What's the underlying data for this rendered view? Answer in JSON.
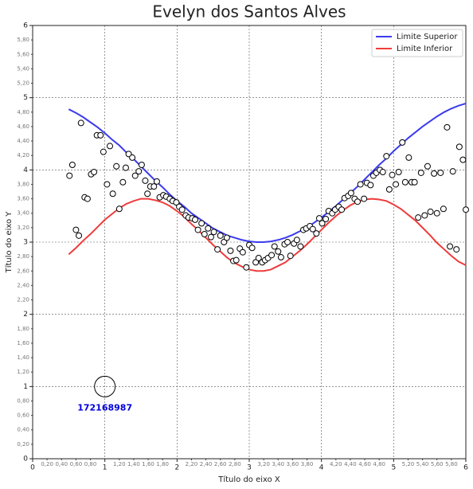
{
  "chart_data": {
    "type": "line",
    "title": "Evelyn dos Santos Alves",
    "x_label": "Título do eixo X",
    "y_label": "Título do eixo Y",
    "xlim": [
      0,
      6
    ],
    "ylim": [
      0,
      6
    ],
    "xticks": [
      0,
      1,
      2,
      3,
      4,
      5,
      6
    ],
    "yticks": [
      0,
      1,
      2,
      3,
      4,
      5,
      6
    ],
    "xticks_minor": [
      {
        "value": 0.2,
        "label": "0,20"
      },
      {
        "value": 0.4,
        "label": "0,40"
      },
      {
        "value": 0.6,
        "label": "0,60"
      },
      {
        "value": 0.8,
        "label": "0,80"
      },
      {
        "value": 1.2,
        "label": "1,20"
      },
      {
        "value": 1.4,
        "label": "1,40"
      },
      {
        "value": 1.6,
        "label": "1,60"
      },
      {
        "value": 1.8,
        "label": "1,80"
      },
      {
        "value": 2.2,
        "label": "2,20"
      },
      {
        "value": 2.4,
        "label": "2,40"
      },
      {
        "value": 2.6,
        "label": "2,60"
      },
      {
        "value": 2.8,
        "label": "2,80"
      },
      {
        "value": 3.2,
        "label": "3,20"
      },
      {
        "value": 3.4,
        "label": "3,40"
      },
      {
        "value": 3.6,
        "label": "3,60"
      },
      {
        "value": 3.8,
        "label": "3,80"
      },
      {
        "value": 4.2,
        "label": "4,20"
      },
      {
        "value": 4.4,
        "label": "4,40"
      },
      {
        "value": 4.6,
        "label": "4,60"
      },
      {
        "value": 4.8,
        "label": "4,80"
      },
      {
        "value": 5.2,
        "label": "5,20"
      },
      {
        "value": 5.4,
        "label": "5,40"
      },
      {
        "value": 5.6,
        "label": "5,60"
      },
      {
        "value": 5.8,
        "label": "5,80"
      }
    ],
    "yticks_minor": [
      {
        "value": 0.2,
        "label": "0,20"
      },
      {
        "value": 0.4,
        "label": "0,40"
      },
      {
        "value": 0.6,
        "label": "0,60"
      },
      {
        "value": 0.8,
        "label": "0,80"
      },
      {
        "value": 1.2,
        "label": "1,20"
      },
      {
        "value": 1.4,
        "label": "1,40"
      },
      {
        "value": 1.6,
        "label": "1,60"
      },
      {
        "value": 1.8,
        "label": "1,80"
      },
      {
        "value": 2.2,
        "label": "2,20"
      },
      {
        "value": 2.4,
        "label": "2,40"
      },
      {
        "value": 2.6,
        "label": "2,60"
      },
      {
        "value": 2.8,
        "label": "2,80"
      },
      {
        "value": 3.2,
        "label": "3,20"
      },
      {
        "value": 3.4,
        "label": "3,40"
      },
      {
        "value": 3.6,
        "label": "3,60"
      },
      {
        "value": 3.8,
        "label": "3,80"
      },
      {
        "value": 4.2,
        "label": "4,20"
      },
      {
        "value": 4.4,
        "label": "4,40"
      },
      {
        "value": 4.6,
        "label": "4,60"
      },
      {
        "value": 4.8,
        "label": "4,80"
      },
      {
        "value": 5.2,
        "label": "5,20"
      },
      {
        "value": 5.4,
        "label": "5,40"
      },
      {
        "value": 5.6,
        "label": "5,60"
      },
      {
        "value": 5.8,
        "label": "5,80"
      }
    ],
    "grid": true,
    "legend": "upper right",
    "x": [
      0.5,
      0.6,
      0.7,
      0.8,
      0.9,
      1.0,
      1.1,
      1.2,
      1.3,
      1.4,
      1.5,
      1.6,
      1.7,
      1.8,
      1.9,
      2.0,
      2.1,
      2.2,
      2.3,
      2.4,
      2.5,
      2.6,
      2.7,
      2.8,
      2.9,
      3.0,
      3.1,
      3.2,
      3.3,
      3.4,
      3.5,
      3.6,
      3.7,
      3.8,
      3.9,
      4.0,
      4.1,
      4.2,
      4.3,
      4.4,
      4.5,
      4.6,
      4.7,
      4.8,
      4.9,
      5.0,
      5.1,
      5.2,
      5.3,
      5.4,
      5.5,
      5.6,
      5.7,
      5.8,
      5.9,
      6.0
    ],
    "series": [
      {
        "name": "Limite Superior",
        "color": "#3b3bf0",
        "values": [
          4.84,
          4.79,
          4.73,
          4.66,
          4.59,
          4.51,
          4.42,
          4.34,
          4.24,
          4.15,
          4.05,
          3.95,
          3.85,
          3.76,
          3.66,
          3.57,
          3.49,
          3.4,
          3.33,
          3.26,
          3.19,
          3.14,
          3.09,
          3.06,
          3.03,
          3.01,
          3.0,
          3.0,
          3.01,
          3.03,
          3.06,
          3.1,
          3.15,
          3.2,
          3.27,
          3.34,
          3.42,
          3.5,
          3.59,
          3.68,
          3.77,
          3.87,
          3.97,
          4.07,
          4.16,
          4.26,
          4.35,
          4.44,
          4.52,
          4.6,
          4.67,
          4.74,
          4.8,
          4.85,
          4.89,
          4.92
        ]
      },
      {
        "name": "Limite Inferior",
        "color": "#f03b3b",
        "values": [
          2.83,
          2.92,
          3.02,
          3.11,
          3.21,
          3.31,
          3.39,
          3.47,
          3.53,
          3.57,
          3.6,
          3.6,
          3.58,
          3.55,
          3.5,
          3.43,
          3.35,
          3.25,
          3.16,
          3.06,
          2.96,
          2.87,
          2.78,
          2.71,
          2.66,
          2.62,
          2.6,
          2.6,
          2.62,
          2.67,
          2.72,
          2.8,
          2.88,
          2.97,
          3.07,
          3.17,
          3.27,
          3.36,
          3.44,
          3.51,
          3.56,
          3.59,
          3.6,
          3.59,
          3.57,
          3.52,
          3.46,
          3.38,
          3.3,
          3.2,
          3.1,
          2.99,
          2.9,
          2.81,
          2.73,
          2.68
        ]
      }
    ],
    "points": {
      "x": [
        0.51,
        0.55,
        0.6,
        0.64,
        0.67,
        0.72,
        0.76,
        0.81,
        0.85,
        0.89,
        0.94,
        0.98,
        1.03,
        1.07,
        1.11,
        1.16,
        1.2,
        1.25,
        1.29,
        1.33,
        1.38,
        1.42,
        1.47,
        1.51,
        1.56,
        1.59,
        1.63,
        1.68,
        1.72,
        1.76,
        1.81,
        1.85,
        1.9,
        1.94,
        1.99,
        2.03,
        2.07,
        2.12,
        2.16,
        2.21,
        2.25,
        2.29,
        2.34,
        2.38,
        2.43,
        2.47,
        2.51,
        2.56,
        2.6,
        2.65,
        2.69,
        2.74,
        2.78,
        2.82,
        2.87,
        2.91,
        2.96,
        3.0,
        3.04,
        3.09,
        3.13,
        3.18,
        3.22,
        3.26,
        3.31,
        3.35,
        3.4,
        3.44,
        3.49,
        3.53,
        3.57,
        3.62,
        3.66,
        3.71,
        3.75,
        3.79,
        3.84,
        3.88,
        3.93,
        3.97,
        4.01,
        4.06,
        4.1,
        4.15,
        4.19,
        4.24,
        4.28,
        4.32,
        4.37,
        4.41,
        4.46,
        4.5,
        4.54,
        4.59,
        4.63,
        4.68,
        4.72,
        4.76,
        4.81,
        4.85,
        4.9,
        4.94,
        4.98,
        5.03,
        5.07,
        5.12,
        5.16,
        5.21,
        5.25,
        5.29,
        5.34,
        5.38,
        5.43,
        5.47,
        5.51,
        5.56,
        5.6,
        5.65,
        5.69,
        5.74,
        5.78,
        5.82,
        5.87,
        5.91,
        5.96,
        6.0
      ],
      "y": [
        3.92,
        4.07,
        3.17,
        3.09,
        4.65,
        3.62,
        3.6,
        3.94,
        3.97,
        4.48,
        4.48,
        4.25,
        3.8,
        4.33,
        3.67,
        4.05,
        3.46,
        3.83,
        4.03,
        4.22,
        4.17,
        3.92,
        3.98,
        4.07,
        3.85,
        3.67,
        3.77,
        3.77,
        3.84,
        3.62,
        3.65,
        3.63,
        3.6,
        3.57,
        3.55,
        3.49,
        3.45,
        3.37,
        3.34,
        3.33,
        3.31,
        3.17,
        3.26,
        3.11,
        3.19,
        3.07,
        3.14,
        2.9,
        3.09,
        3.0,
        3.06,
        2.88,
        2.74,
        2.75,
        2.91,
        2.86,
        2.65,
        2.96,
        2.92,
        2.72,
        2.78,
        2.72,
        2.75,
        2.78,
        2.82,
        2.94,
        2.87,
        2.79,
        2.97,
        3.0,
        2.81,
        2.98,
        3.03,
        2.94,
        3.17,
        3.19,
        3.22,
        3.18,
        3.12,
        3.33,
        3.26,
        3.32,
        3.43,
        3.4,
        3.45,
        3.49,
        3.45,
        3.61,
        3.64,
        3.68,
        3.6,
        3.56,
        3.8,
        3.6,
        3.82,
        3.79,
        3.92,
        3.96,
        4.0,
        3.97,
        4.19,
        3.73,
        3.93,
        3.8,
        3.97,
        4.38,
        3.83,
        4.17,
        3.83,
        3.83,
        3.34,
        3.96,
        3.37,
        4.05,
        3.42,
        3.95,
        3.4,
        3.96,
        3.46,
        4.59,
        2.94,
        3.98,
        2.9,
        4.32,
        4.14,
        3.45
      ]
    },
    "annotation": {
      "text": "172168987",
      "x": 1,
      "y": 1,
      "color": "#0000dd"
    }
  }
}
